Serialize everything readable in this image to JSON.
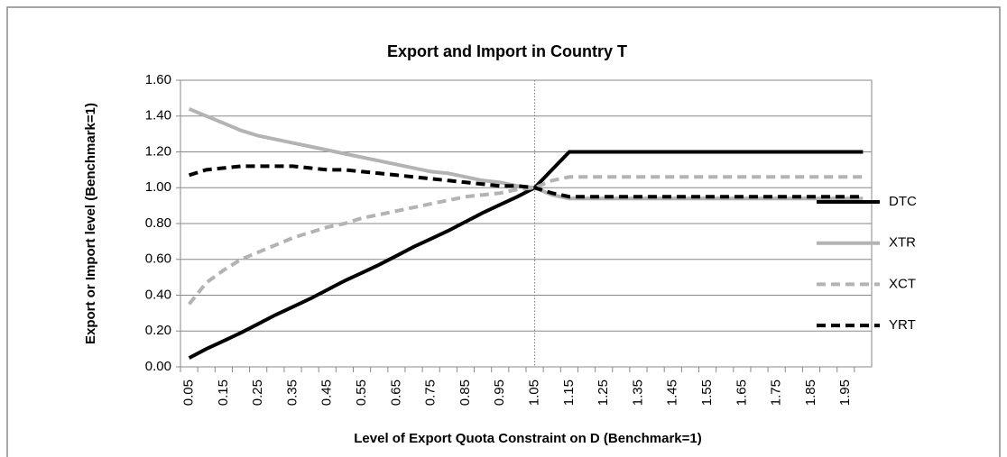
{
  "chart_data": {
    "type": "line",
    "title": "Export and Import in Country T",
    "xlabel": "Level of Export Quota Constraint on D (Benchmark=1)",
    "ylabel": "Export or Import level (Benchmark=1)",
    "categories": [
      "0.05",
      null,
      "0.15",
      null,
      "0.25",
      null,
      "0.35",
      null,
      "0.45",
      null,
      "0.55",
      null,
      "0.65",
      null,
      "0.75",
      null,
      "0.85",
      null,
      "0.95",
      null,
      "1.05",
      null,
      "1.15",
      null,
      "1.25",
      null,
      "1.35",
      null,
      "1.45",
      null,
      "1.55",
      null,
      "1.65",
      null,
      "1.75",
      null,
      "1.85",
      null,
      "1.95",
      null
    ],
    "ylim": [
      0,
      1.6
    ],
    "yticks": [
      {
        "value": 0,
        "label": "0.00"
      },
      {
        "value": 0.2,
        "label": "0.20"
      },
      {
        "value": 0.4,
        "label": "0.40"
      },
      {
        "value": 0.6,
        "label": "0.60"
      },
      {
        "value": 0.8,
        "label": "0.80"
      },
      {
        "value": 1,
        "label": "1.00"
      },
      {
        "value": 1.2,
        "label": "1.20"
      },
      {
        "value": 1.4,
        "label": "1.40"
      },
      {
        "value": 1.6,
        "label": "1.60"
      }
    ],
    "grid": true,
    "vline": "1.05",
    "legend": "right",
    "series": [
      {
        "name": "DTC",
        "color": "#000000",
        "dashed": false,
        "values": [
          0.05,
          0.1,
          0.145,
          0.19,
          0.24,
          0.29,
          0.335,
          0.38,
          0.43,
          0.48,
          0.525,
          0.57,
          0.62,
          0.67,
          0.715,
          0.76,
          0.81,
          0.86,
          0.905,
          0.95,
          1.0,
          1.1,
          1.2,
          1.2,
          1.2,
          1.2,
          1.2,
          1.2,
          1.2,
          1.2,
          1.2,
          1.2,
          1.2,
          1.2,
          1.2,
          1.2,
          1.2,
          1.2,
          1.2,
          1.2
        ]
      },
      {
        "name": "XTR",
        "color": "#b3b3b3",
        "dashed": false,
        "values": [
          1.44,
          1.4,
          1.36,
          1.32,
          1.29,
          1.27,
          1.25,
          1.23,
          1.21,
          1.19,
          1.17,
          1.15,
          1.13,
          1.11,
          1.09,
          1.08,
          1.06,
          1.04,
          1.03,
          1.01,
          1.0,
          0.96,
          0.94,
          0.94,
          0.94,
          0.94,
          0.94,
          0.94,
          0.94,
          0.94,
          0.94,
          0.94,
          0.94,
          0.94,
          0.94,
          0.94,
          0.94,
          0.94,
          0.94,
          0.94
        ]
      },
      {
        "name": "XCT",
        "color": "#b3b3b3",
        "dashed": true,
        "values": [
          0.35,
          0.47,
          0.54,
          0.6,
          0.64,
          0.68,
          0.72,
          0.75,
          0.78,
          0.8,
          0.83,
          0.85,
          0.87,
          0.89,
          0.91,
          0.93,
          0.95,
          0.96,
          0.97,
          0.99,
          1.0,
          1.04,
          1.06,
          1.06,
          1.06,
          1.06,
          1.06,
          1.06,
          1.06,
          1.06,
          1.06,
          1.06,
          1.06,
          1.06,
          1.06,
          1.06,
          1.06,
          1.06,
          1.06,
          1.06
        ]
      },
      {
        "name": "YRT",
        "color": "#000000",
        "dashed": true,
        "values": [
          1.07,
          1.1,
          1.11,
          1.12,
          1.12,
          1.12,
          1.12,
          1.11,
          1.1,
          1.1,
          1.09,
          1.08,
          1.07,
          1.06,
          1.05,
          1.04,
          1.03,
          1.02,
          1.01,
          1.01,
          1.0,
          0.97,
          0.95,
          0.95,
          0.95,
          0.95,
          0.95,
          0.95,
          0.95,
          0.95,
          0.95,
          0.95,
          0.95,
          0.95,
          0.95,
          0.95,
          0.95,
          0.95,
          0.95,
          0.95
        ]
      }
    ]
  }
}
